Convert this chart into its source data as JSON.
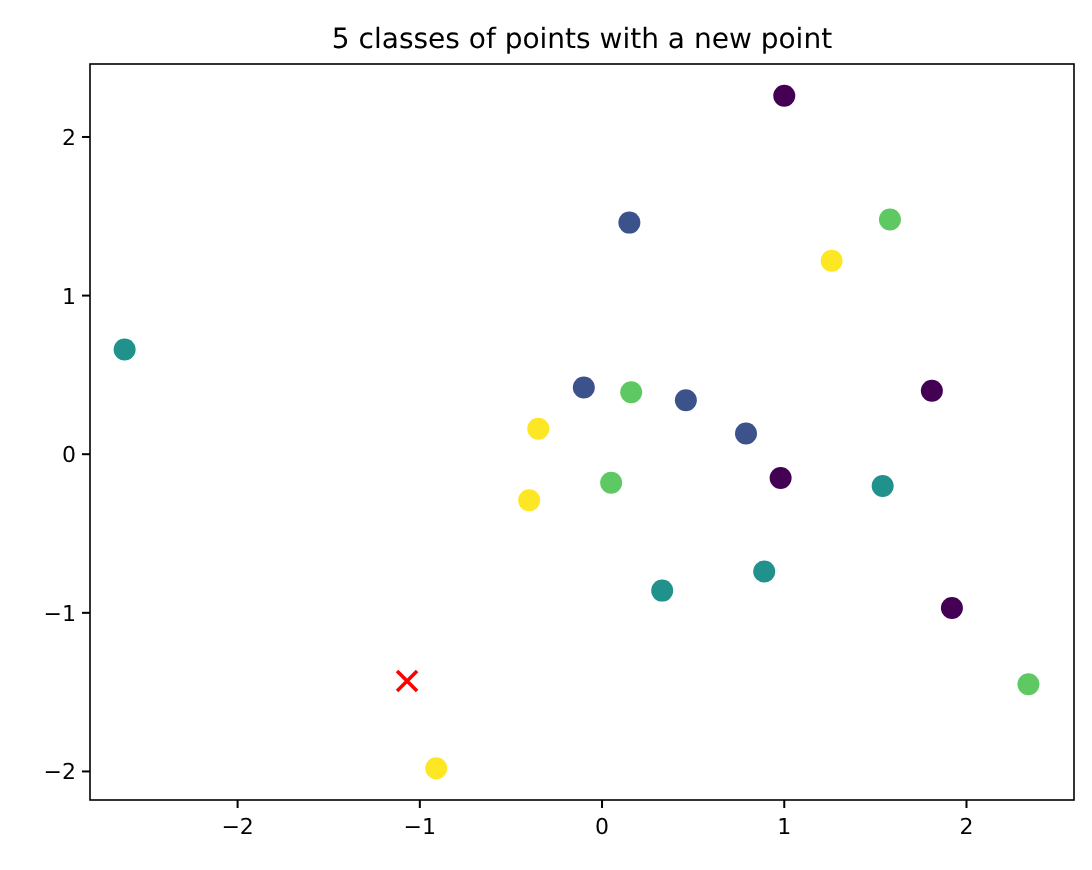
{
  "chart_data": {
    "type": "scatter",
    "title": "5 classes of points with a new point",
    "xlim": [
      -2.81,
      2.59
    ],
    "ylim": [
      -2.18,
      2.46
    ],
    "xticks": [
      -2,
      -1,
      0,
      1,
      2
    ],
    "yticks": [
      -2,
      -1,
      0,
      1,
      2
    ],
    "grid": false,
    "marker": "circle",
    "series": [
      {
        "color": "#440154",
        "x": [
          1.0,
          1.81,
          0.98,
          1.92
        ],
        "values": [
          2.26,
          0.4,
          -0.15,
          -0.97
        ]
      },
      {
        "color": "#3b528b",
        "x": [
          0.15,
          -0.1,
          0.46,
          0.79
        ],
        "values": [
          1.46,
          0.42,
          0.34,
          0.13
        ]
      },
      {
        "color": "#21918c",
        "x": [
          -2.62,
          1.54,
          0.33,
          0.89
        ],
        "values": [
          0.66,
          -0.2,
          -0.86,
          -0.74
        ]
      },
      {
        "color": "#5ec962",
        "x": [
          1.58,
          0.16,
          0.05,
          2.34
        ],
        "values": [
          1.48,
          0.39,
          -0.18,
          -1.45
        ]
      },
      {
        "color": "#fde725",
        "x": [
          1.26,
          -0.35,
          -0.4,
          -0.91
        ],
        "values": [
          1.22,
          0.16,
          -0.29,
          -1.98
        ]
      },
      {
        "color": "#ff0000",
        "marker": "cross",
        "x": [
          -1.07
        ],
        "values": [
          -1.43
        ]
      }
    ]
  }
}
